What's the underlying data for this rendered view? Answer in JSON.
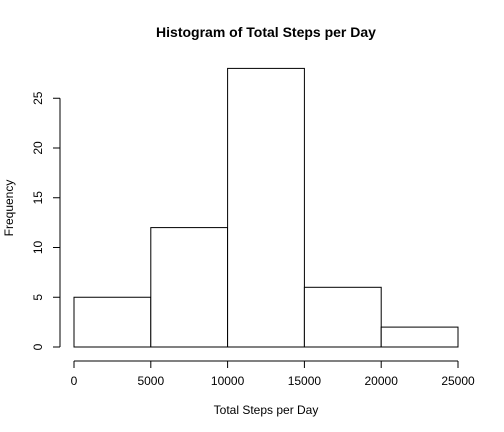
{
  "chart_data": {
    "type": "bar",
    "title": "Histogram of Total Steps per Day",
    "xlabel": "Total Steps per Day",
    "ylabel": "Frequency",
    "bins": [
      {
        "from": 0,
        "to": 5000,
        "count": 5
      },
      {
        "from": 5000,
        "to": 10000,
        "count": 12
      },
      {
        "from": 10000,
        "to": 15000,
        "count": 28
      },
      {
        "from": 15000,
        "to": 20000,
        "count": 6
      },
      {
        "from": 20000,
        "to": 25000,
        "count": 2
      }
    ],
    "xlim": [
      0,
      25000
    ],
    "ylim": [
      0,
      28
    ],
    "x_ticks": [
      "0",
      "5000",
      "10000",
      "15000",
      "20000",
      "25000"
    ],
    "y_ticks": [
      "0",
      "5",
      "10",
      "15",
      "20",
      "25"
    ],
    "grid": false,
    "bar_fill": "#ffffff",
    "bar_stroke": "#000000"
  }
}
